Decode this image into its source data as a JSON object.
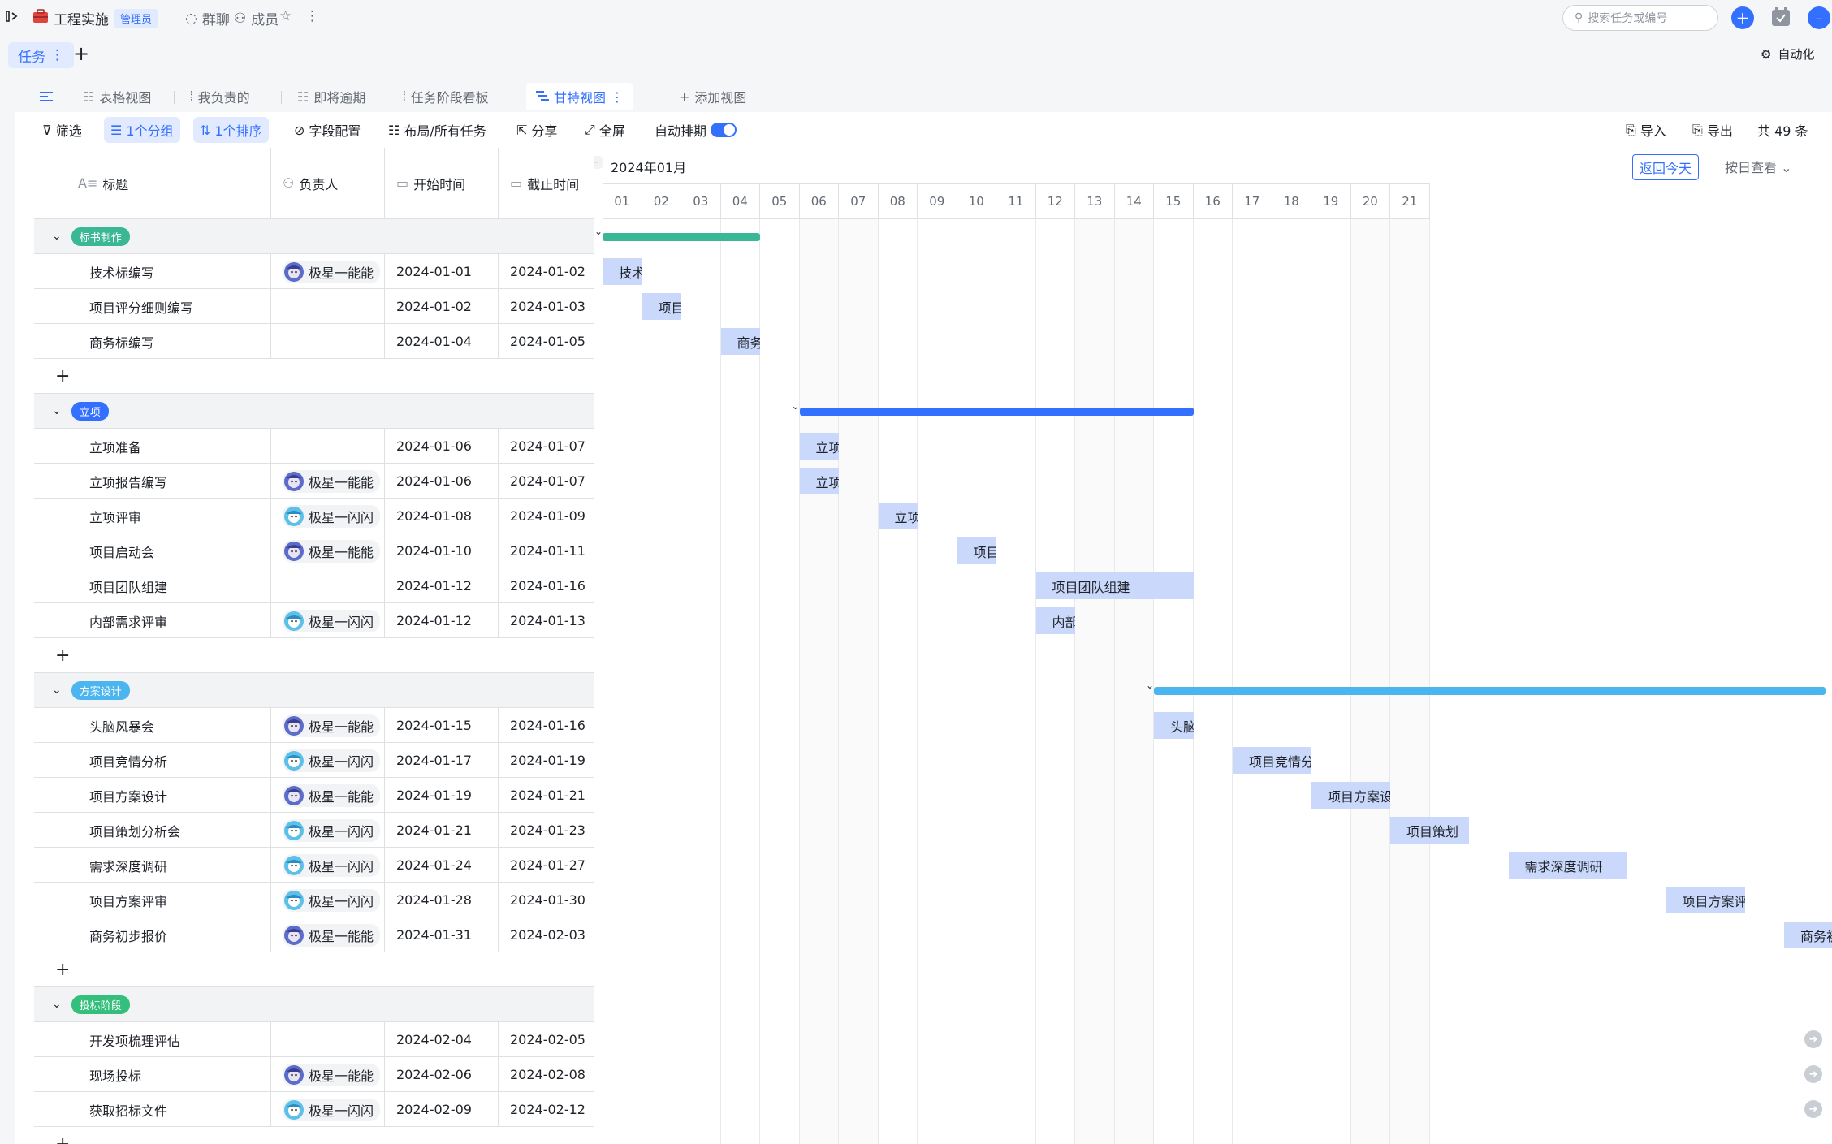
{
  "app": {
    "project_name": "工程实施",
    "role_badge": "管理员",
    "group_chat": "群聊",
    "members": "成员",
    "search_placeholder": "搜索任务或编号",
    "task_tab": "任务",
    "automation": "自动化"
  },
  "views": {
    "tabs": [
      "表格视图",
      "我负责的",
      "即将逾期",
      "任务阶段看板",
      "甘特视图"
    ],
    "add_view": "添加视图"
  },
  "toolbar": {
    "filter": "筛选",
    "group": "1个分组",
    "sort": "1个排序",
    "fields": "字段配置",
    "layout": "布局/所有任务",
    "share": "分享",
    "fullscreen": "全屏",
    "auto_schedule": "自动排期",
    "import": "导入",
    "export": "导出",
    "total": "共 49 条"
  },
  "table": {
    "headers": [
      "标题",
      "负责人",
      "开始时间",
      "截止时间"
    ],
    "groups": [
      {
        "name": "标书制作",
        "color": "#3ab795",
        "tasks": [
          {
            "title": "技术标编写",
            "owner": "极星一能能",
            "owner_style": "a",
            "start": "2024-01-01",
            "end": "2024-01-02"
          },
          {
            "title": "项目评分细则编写",
            "owner": "",
            "owner_style": "",
            "start": "2024-01-02",
            "end": "2024-01-03"
          },
          {
            "title": "商务标编写",
            "owner": "",
            "owner_style": "",
            "start": "2024-01-04",
            "end": "2024-01-05"
          }
        ]
      },
      {
        "name": "立项",
        "color": "#3370ff",
        "tasks": [
          {
            "title": "立项准备",
            "owner": "",
            "owner_style": "",
            "start": "2024-01-06",
            "end": "2024-01-07"
          },
          {
            "title": "立项报告编写",
            "owner": "极星一能能",
            "owner_style": "a",
            "start": "2024-01-06",
            "end": "2024-01-07"
          },
          {
            "title": "立项评审",
            "owner": "极星一闪闪",
            "owner_style": "b",
            "start": "2024-01-08",
            "end": "2024-01-09"
          },
          {
            "title": "项目启动会",
            "owner": "极星一能能",
            "owner_style": "a",
            "start": "2024-01-10",
            "end": "2024-01-11"
          },
          {
            "title": "项目团队组建",
            "owner": "",
            "owner_style": "",
            "start": "2024-01-12",
            "end": "2024-01-16"
          },
          {
            "title": "内部需求评审",
            "owner": "极星一闪闪",
            "owner_style": "b",
            "start": "2024-01-12",
            "end": "2024-01-13"
          }
        ]
      },
      {
        "name": "方案设计",
        "color": "#4ab5ee",
        "tasks": [
          {
            "title": "头脑风暴会",
            "owner": "极星一能能",
            "owner_style": "a",
            "start": "2024-01-15",
            "end": "2024-01-16"
          },
          {
            "title": "项目竞情分析",
            "owner": "极星一闪闪",
            "owner_style": "b",
            "start": "2024-01-17",
            "end": "2024-01-19"
          },
          {
            "title": "项目方案设计",
            "owner": "极星一能能",
            "owner_style": "a",
            "start": "2024-01-19",
            "end": "2024-01-21"
          },
          {
            "title": "项目策划分析会",
            "owner": "极星一闪闪",
            "owner_style": "b",
            "start": "2024-01-21",
            "end": "2024-01-23"
          },
          {
            "title": "需求深度调研",
            "owner": "极星一闪闪",
            "owner_style": "b",
            "start": "2024-01-24",
            "end": "2024-01-27"
          },
          {
            "title": "项目方案评审",
            "owner": "极星一闪闪",
            "owner_style": "b",
            "start": "2024-01-28",
            "end": "2024-01-30"
          },
          {
            "title": "商务初步报价",
            "owner": "极星一能能",
            "owner_style": "a",
            "start": "2024-01-31",
            "end": "2024-02-03"
          }
        ]
      },
      {
        "name": "投标阶段",
        "color": "#34c07c",
        "tasks": [
          {
            "title": "开发项梳理评估",
            "owner": "",
            "owner_style": "",
            "start": "2024-02-04",
            "end": "2024-02-05"
          },
          {
            "title": "现场投标",
            "owner": "极星一能能",
            "owner_style": "a",
            "start": "2024-02-06",
            "end": "2024-02-08"
          },
          {
            "title": "获取招标文件",
            "owner": "极星一闪闪",
            "owner_style": "b",
            "start": "2024-02-09",
            "end": "2024-02-12"
          }
        ]
      }
    ]
  },
  "gantt": {
    "month_label": "2024年01月",
    "today_button": "返回今天",
    "scale_select": "按日查看",
    "days": [
      "01",
      "02",
      "03",
      "04",
      "05",
      "06",
      "07",
      "08",
      "09",
      "10",
      "11",
      "12",
      "13",
      "14",
      "15",
      "16",
      "17",
      "18",
      "19",
      "20",
      "21"
    ],
    "bar_labels": {
      "技术标编写": "技术标编写",
      "项目评分细则编写": "项目评分...",
      "商务标编写": "商务标编写",
      "立项准备": "立项准备",
      "立项报告编写": "立项报告...",
      "立项评审": "立项评审",
      "项目启动会": "项目启动会",
      "项目团队组建": "项目团队组建",
      "内部需求评审": "内部需求...",
      "头脑风暴会": "头脑风暴会",
      "项目竞情分析": "项目竞情分析",
      "项目方案设计": "项目方案设计",
      "项目策划分析会": "项目策划"
    }
  }
}
